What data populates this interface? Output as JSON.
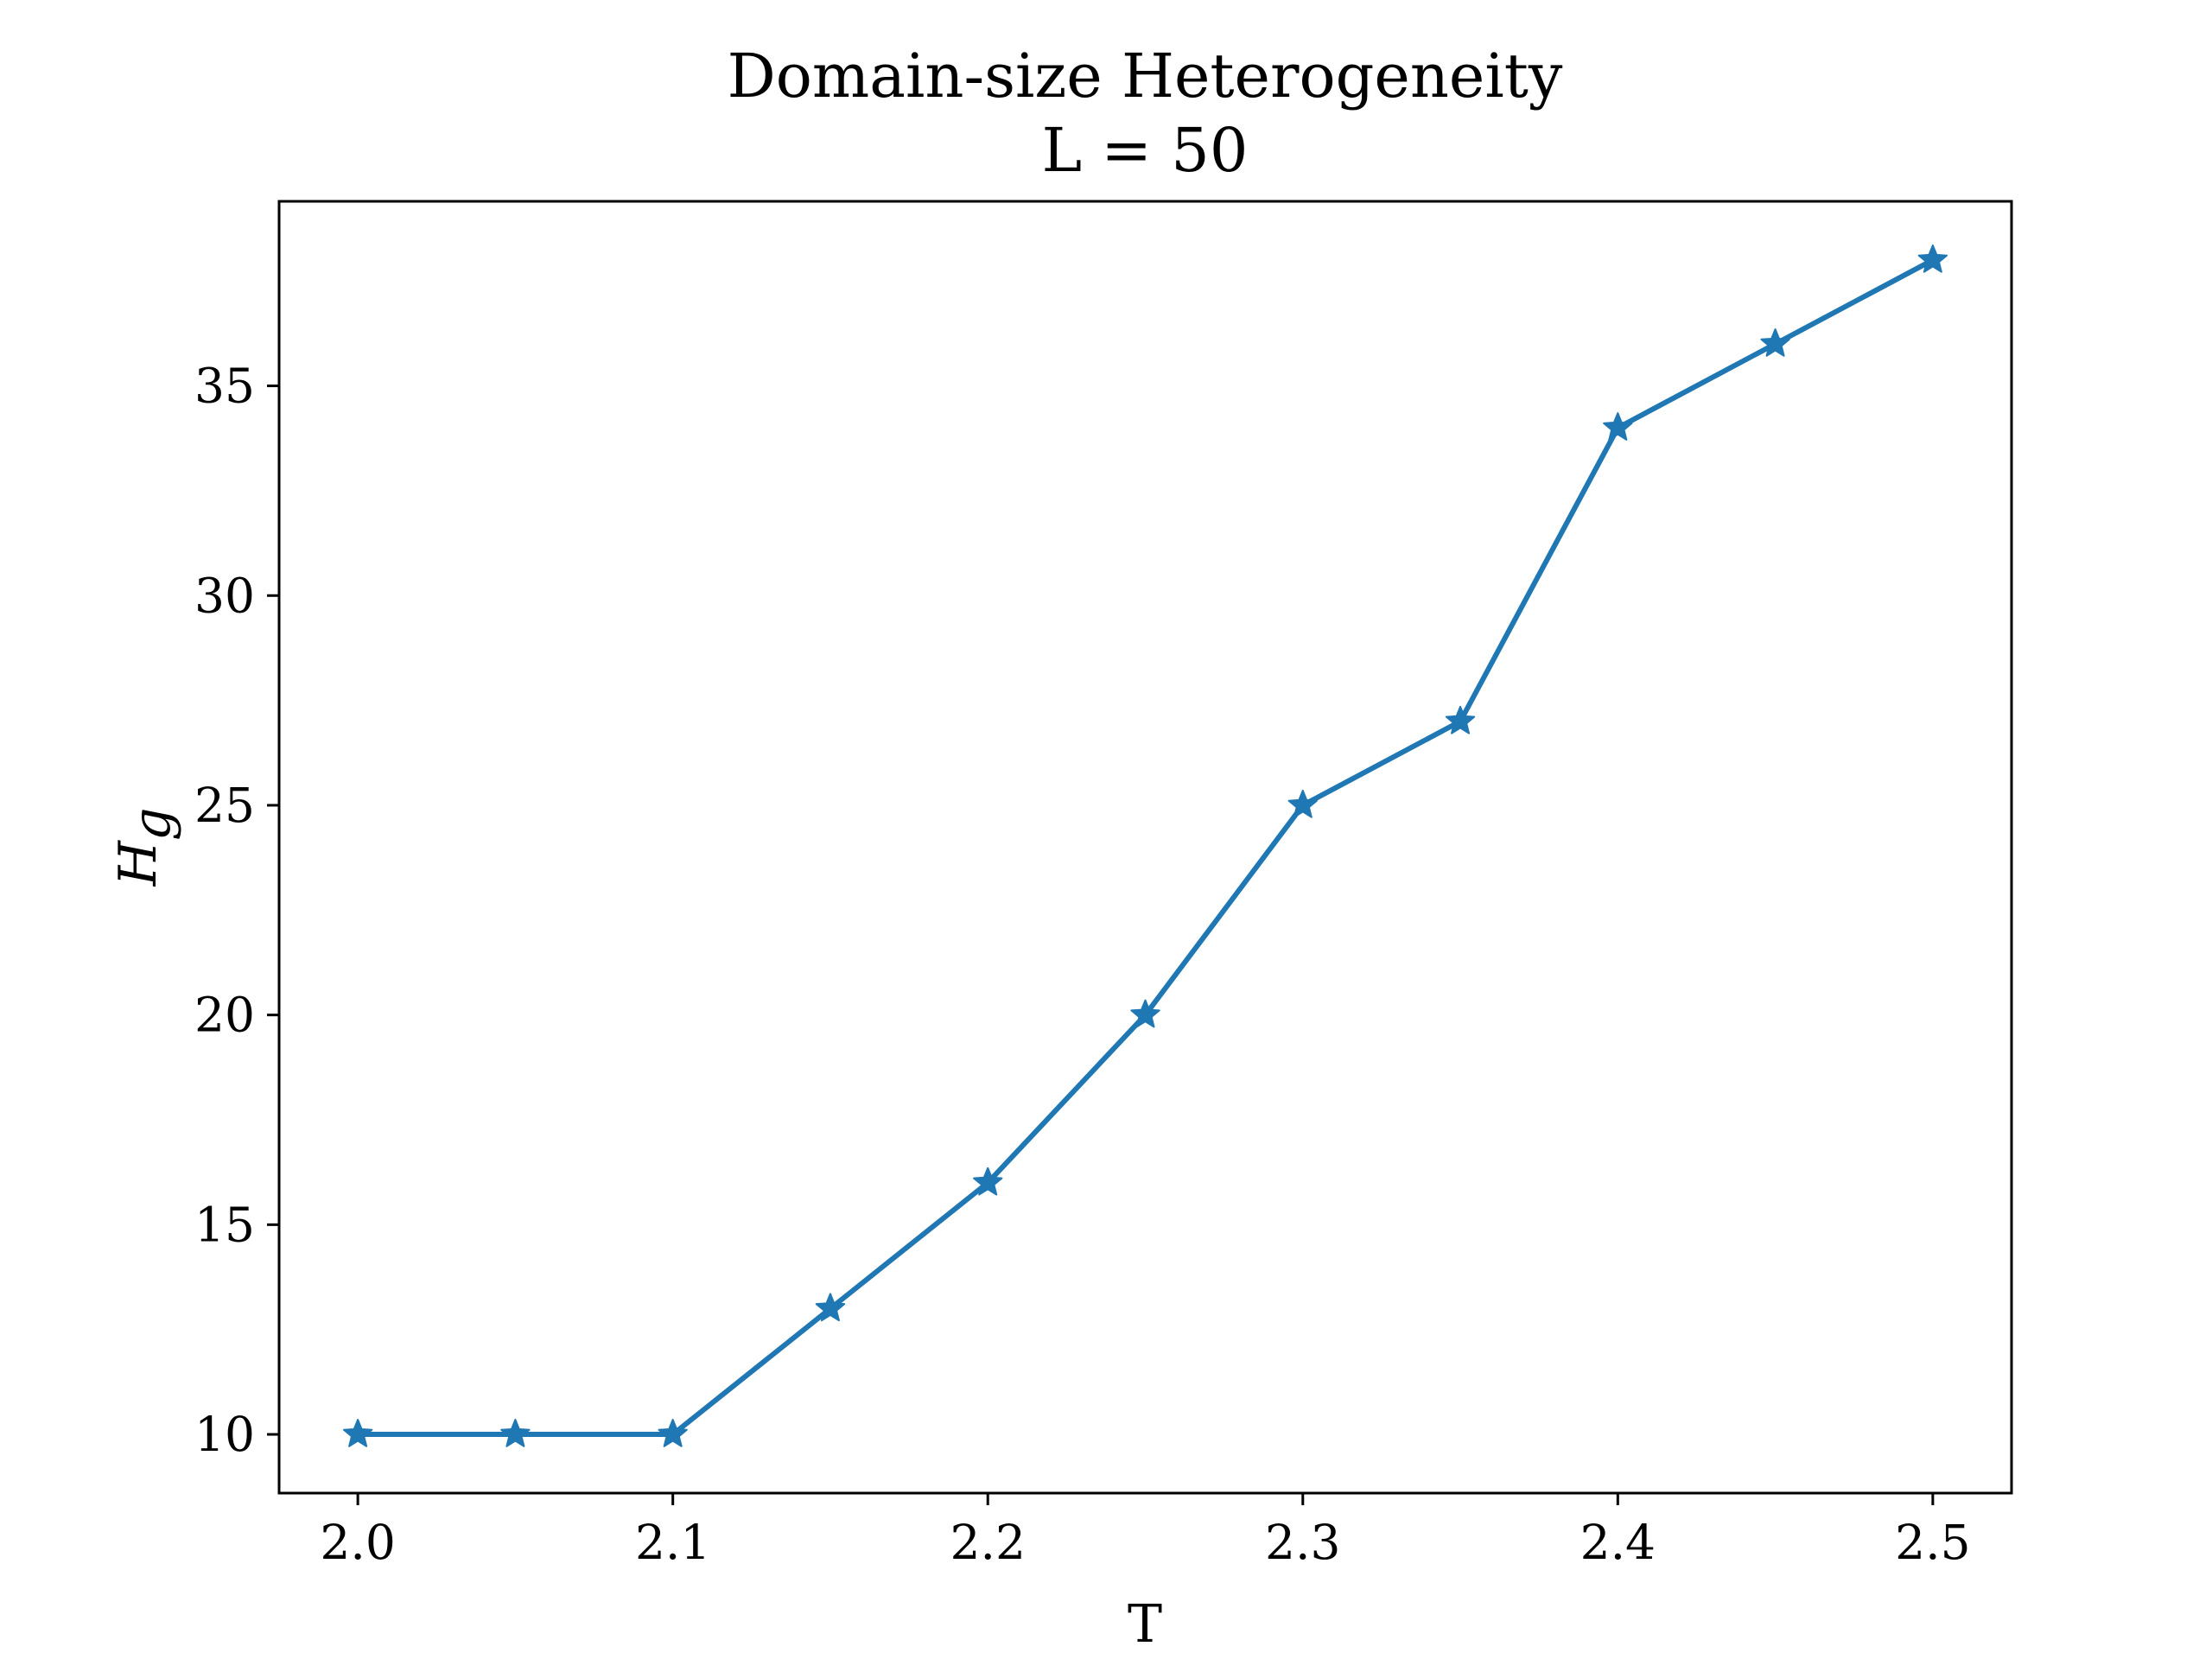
{
  "chart_data": {
    "type": "line",
    "title": "Domain-size Heterogeneity",
    "subtitle": "L = 50",
    "xlabel": "T",
    "ylabel": "H",
    "ylabel_subscript": "g",
    "x": [
      2.0,
      2.05,
      2.1,
      2.15,
      2.2,
      2.25,
      2.3,
      2.35,
      2.4,
      2.45,
      2.5
    ],
    "series": [
      {
        "values": [
          10,
          10,
          10,
          13,
          16,
          20,
          25,
          27,
          34,
          36,
          38
        ],
        "color": "#1f77b4",
        "marker": "star"
      }
    ],
    "xlim": [
      1.975,
      2.525
    ],
    "ylim": [
      8.6,
      39.4
    ],
    "xticks": [
      2.0,
      2.1,
      2.2,
      2.3,
      2.4,
      2.5
    ],
    "xtick_labels": [
      "2.0",
      "2.1",
      "2.2",
      "2.3",
      "2.4",
      "2.5"
    ],
    "yticks": [
      10,
      15,
      20,
      25,
      30,
      35
    ],
    "ytick_labels": [
      "10",
      "15",
      "20",
      "25",
      "30",
      "35"
    ],
    "grid": false,
    "legend": "none"
  }
}
